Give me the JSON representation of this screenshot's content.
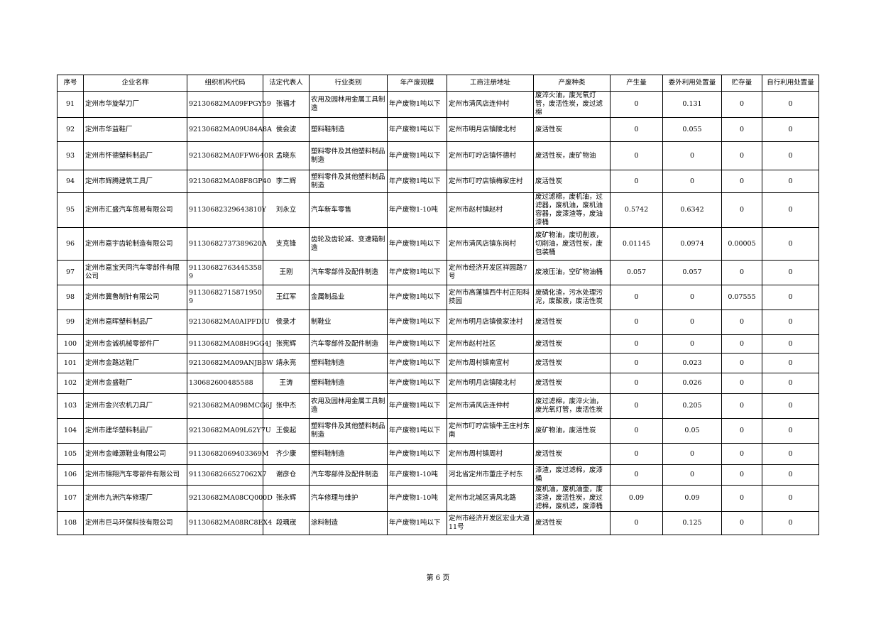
{
  "table": {
    "headers": [
      "序号",
      "企业名称",
      "组织机构代码",
      "法定代表人",
      "行业类别",
      "年产废规模",
      "工商注册地址",
      "产废种类",
      "产生量",
      "委外利用处置量",
      "贮存量",
      "自行利用处置量"
    ],
    "rows": [
      [
        "91",
        "定州市华旋犁刀厂",
        "92130682MA09FPGY59",
        "张福才",
        "农用及园林用金属工具制造",
        "年产废物1吨以下",
        "定州市清风店连仲村",
        "废淬火油，废光氧灯管，废活性炭，废过滤棉",
        "0",
        "0.131",
        "0",
        "0"
      ],
      [
        "92",
        "定州市华益鞋厂",
        "92130682MA09U84A8A",
        "侯会波",
        "塑料鞋制造",
        "年产废物1吨以下",
        "定州市明月店镇陵北村",
        "废活性炭",
        "0",
        "0.055",
        "0",
        "0"
      ],
      [
        "93",
        "定州市怀德塑料制品厂",
        "92130682MA0FFW640R",
        "孟晓东",
        "塑料零件及其他塑料制品制造",
        "年产废物1吨以下",
        "定州市叮咛店镇怀德村",
        "废活性炭，废矿物油",
        "0",
        "0",
        "0",
        "0"
      ],
      [
        "94",
        "定州市辉腾建筑工具厂",
        "92130682MA08F8GP40",
        "李二辉",
        "塑料零件及其他塑料制品制造",
        "年产废物1吨以下",
        "定州市叮咛店镇梅家庄村",
        "废活性炭",
        "0",
        "0",
        "0",
        "0"
      ],
      [
        "95",
        "定州市汇盛汽车贸易有限公司",
        "91130682329643810Y",
        "刘永立",
        "汽车新车零售",
        "年产废物1-10吨",
        "定州市赵村镇赵村",
        "废过滤棉，废机油，过滤器，废机油，废机油容器，废漆渣等，废油漆桶",
        "0.5742",
        "0.6342",
        "0",
        "0"
      ],
      [
        "96",
        "定州市嘉宇齿轮制造有限公司",
        "91130682737389620A",
        "支克锋",
        "齿轮及齿轮减、变速箱制造",
        "年产废物1吨以下",
        "定州市清风店镇东岗村",
        "废矿物油，废切削液，切削油，废活性炭，废包装桶",
        "0.01145",
        "0.0974",
        "0.00005",
        "0"
      ],
      [
        "97",
        "定州市嘉宝天同汽车零部件有限公司",
        "91130682763445358 9",
        "王刚",
        "汽车零部件及配件制造",
        "年产废物1吨以下",
        "定州市经济开发区祥园路7号",
        "废液压油，空矿物油桶",
        "0.057",
        "0.057",
        "0",
        "0"
      ],
      [
        "98",
        "定州市冀鲁制针有限公司",
        "91130682715871950 9",
        "王红军",
        "金属制品业",
        "年产废物1吨以下",
        "定州市高蓬镇西牛村正阳科技园",
        "废磷化渣，污水处理污泥，废酸液，废活性炭",
        "0",
        "0",
        "0.07555",
        "0"
      ],
      [
        "99",
        "定州市嘉晖塑料制品厂",
        "92130682MA0AIPFDIU",
        "侯录才",
        "制鞋业",
        "年产废物1吨以下",
        "定州市明月店镇侯家洼村",
        "废活性炭",
        "0",
        "0",
        "0",
        "0"
      ],
      [
        "100",
        "定州市金诚机械零部件厂",
        "91130682MA08H9GG4J",
        "张宪辉",
        "汽车零部件及配件制造",
        "年产废物1吨以下",
        "定州市赵村社区",
        "废活性炭",
        "0",
        "0",
        "0",
        "0"
      ],
      [
        "101",
        "定州市金路达鞋厂",
        "92130682MA09ANJB3W",
        "靖永亮",
        "塑料鞋制造",
        "年产废物1吨以下",
        "定州市周村镇南宣村",
        "废活性炭",
        "0",
        "0.023",
        "0",
        "0"
      ],
      [
        "102",
        "定州市金盛鞋厂",
        "130682600485588",
        "王涛",
        "塑料鞋制造",
        "年产废物1吨以下",
        "定州市明月店镇陵北村",
        "废活性炭",
        "0",
        "0.026",
        "0",
        "0"
      ],
      [
        "103",
        "定州市金兴农机刀具厂",
        "92130682MA098MCG6J",
        "张中杰",
        "农用及园林用金属工具制造",
        "年产废物1吨以下",
        "定州市清风店连仲村",
        "废过滤棉，废淬火油，废光氧灯管，废活性炭",
        "0",
        "0.205",
        "0",
        "0"
      ],
      [
        "104",
        "定州市建华塑料制品厂",
        "92130682MA09L62Y7U",
        "王俊起",
        "塑料零件及其他塑料制品制造",
        "年产废物1吨以下",
        "定州市叮咛店镇牛王庄村东南",
        "废矿物油，废活性炭",
        "0",
        "0.05",
        "0",
        "0"
      ],
      [
        "105",
        "定州市金峰源鞋业有限公司",
        "91130682069403369M",
        "齐少康",
        "塑料鞋制造",
        "年产废物1吨以下",
        "定州市周村镇周村",
        "废活性炭",
        "0",
        "0",
        "0",
        "0"
      ],
      [
        "106",
        "定州市锦翔汽车零部件有限公司",
        "9113068266527062X7",
        "谢彦仓",
        "汽车零部件及配件制造",
        "年产废物1-10吨",
        "河北省定州市董庄子村东",
        "漆渣，废过滤棉，废漆桶",
        "0",
        "0",
        "0",
        "0"
      ],
      [
        "107",
        "定州市九洲汽车修理厂",
        "92130682MA08CQ000D",
        "张永辉",
        "汽车修理与维护",
        "年产废物1-10吨",
        "定州市北城区清风北路",
        "废机油，废机油壶，废漆渣，废活性炭，废过滤棉，废机滤，废漆桶",
        "0.09",
        "0.09",
        "0",
        "0"
      ],
      [
        "108",
        "定州市巨马环保科技有限公司",
        "91130682MA08RC8EX4",
        "段瑀宬",
        "涂料制造",
        "年产废物1吨以下",
        "定州市经济开发区宏业大道11号",
        "废活性炭",
        "0",
        "0.125",
        "0",
        "0"
      ]
    ]
  },
  "footer": {
    "page_label": "第 6 页"
  }
}
